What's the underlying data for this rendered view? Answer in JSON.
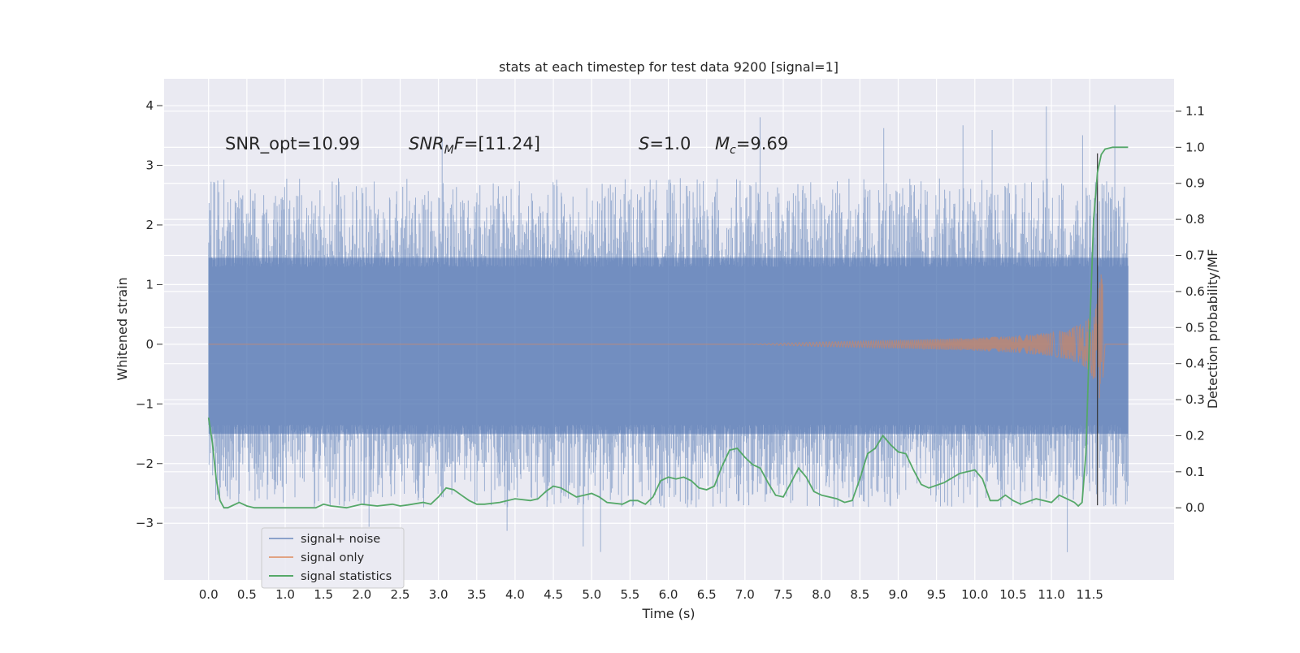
{
  "chart_data": {
    "type": "line",
    "title": "stats at each timestep for test data 9200 [signal=1]",
    "xlabel": "Time (s)",
    "ylabel": "Whitened strain",
    "ylabel_right": "Detection probability/MF",
    "xlim": [
      -0.58,
      12.6
    ],
    "ylim": [
      -3.95,
      4.45
    ],
    "ylim_right": [
      -0.2,
      1.19
    ],
    "x_ticks": [
      "0.0",
      "0.5",
      "1.0",
      "1.5",
      "2.0",
      "2.5",
      "3.0",
      "3.5",
      "4.0",
      "4.5",
      "5.0",
      "5.5",
      "6.0",
      "6.5",
      "7.0",
      "7.5",
      "8.0",
      "8.5",
      "9.0",
      "9.5",
      "10.0",
      "10.5",
      "11.0",
      "11.5"
    ],
    "y_ticks": [
      "4",
      "3",
      "2",
      "1",
      "0",
      "−1",
      "−2",
      "−3"
    ],
    "y_ticks_right": [
      "1.1",
      "1.0",
      "0.9",
      "0.8",
      "0.7",
      "0.6",
      "0.5",
      "0.4",
      "0.3",
      "0.2",
      "0.1",
      "0.0"
    ],
    "grid": true,
    "legend_position": "lower-left",
    "annotations": [
      {
        "text": "SNR_opt=10.99"
      },
      {
        "text": "SNR_MF=[11.24]"
      },
      {
        "text": "S=1.0"
      },
      {
        "text": "M_c=9.69"
      }
    ],
    "series": [
      {
        "name": "signal+ noise",
        "color": "#4c72b0",
        "kind": "noise band",
        "x_range": [
          0.0,
          12.0
        ],
        "core_range": [
          -1.5,
          1.45
        ],
        "spike_max": 4.1,
        "spike_min": -3.55
      },
      {
        "name": "signal only",
        "color": "#dd8452",
        "kind": "chirp",
        "x_range": [
          0.0,
          12.0
        ],
        "x": [
          0.0,
          7.0,
          8.0,
          9.0,
          10.0,
          10.5,
          11.0,
          11.2,
          11.4,
          11.5,
          11.6,
          11.66,
          11.7,
          12.0
        ],
        "envelope": [
          0.0,
          0.0,
          0.04,
          0.07,
          0.11,
          0.14,
          0.2,
          0.25,
          0.35,
          0.45,
          0.75,
          1.3,
          0.0,
          0.0
        ]
      },
      {
        "name": "signal statistics",
        "color": "#55a868",
        "axis": "right",
        "x": [
          0.0,
          0.05,
          0.1,
          0.15,
          0.2,
          0.25,
          0.3,
          0.4,
          0.5,
          0.6,
          0.7,
          0.8,
          1.0,
          1.2,
          1.4,
          1.5,
          1.6,
          1.8,
          2.0,
          2.2,
          2.4,
          2.5,
          2.6,
          2.8,
          2.9,
          3.0,
          3.1,
          3.2,
          3.3,
          3.4,
          3.5,
          3.6,
          3.8,
          4.0,
          4.2,
          4.3,
          4.4,
          4.5,
          4.6,
          4.8,
          4.9,
          5.0,
          5.1,
          5.2,
          5.4,
          5.5,
          5.6,
          5.7,
          5.8,
          5.9,
          6.0,
          6.1,
          6.2,
          6.3,
          6.4,
          6.5,
          6.6,
          6.7,
          6.8,
          6.9,
          7.0,
          7.1,
          7.2,
          7.3,
          7.4,
          7.5,
          7.6,
          7.7,
          7.8,
          7.9,
          8.0,
          8.2,
          8.3,
          8.4,
          8.5,
          8.6,
          8.7,
          8.8,
          8.9,
          9.0,
          9.1,
          9.2,
          9.3,
          9.4,
          9.6,
          9.8,
          9.9,
          10.0,
          10.1,
          10.2,
          10.3,
          10.4,
          10.5,
          10.6,
          10.8,
          11.0,
          11.1,
          11.2,
          11.3,
          11.35,
          11.4,
          11.45,
          11.5,
          11.55,
          11.6,
          11.65,
          11.7,
          11.8,
          11.9,
          12.0
        ],
        "y": [
          0.25,
          0.18,
          0.08,
          0.02,
          0.0,
          0.0,
          0.005,
          0.015,
          0.005,
          0.0,
          0.0,
          0.0,
          0.0,
          0.0,
          0.0,
          0.01,
          0.005,
          0.0,
          0.01,
          0.005,
          0.01,
          0.005,
          0.008,
          0.015,
          0.01,
          0.03,
          0.055,
          0.05,
          0.035,
          0.02,
          0.01,
          0.01,
          0.015,
          0.025,
          0.02,
          0.025,
          0.045,
          0.06,
          0.055,
          0.03,
          0.035,
          0.04,
          0.03,
          0.015,
          0.01,
          0.02,
          0.02,
          0.01,
          0.03,
          0.075,
          0.085,
          0.08,
          0.085,
          0.075,
          0.055,
          0.05,
          0.06,
          0.115,
          0.16,
          0.165,
          0.14,
          0.12,
          0.11,
          0.07,
          0.035,
          0.03,
          0.07,
          0.11,
          0.085,
          0.045,
          0.035,
          0.025,
          0.015,
          0.02,
          0.08,
          0.15,
          0.165,
          0.2,
          0.175,
          0.155,
          0.15,
          0.105,
          0.065,
          0.055,
          0.07,
          0.095,
          0.1,
          0.105,
          0.08,
          0.02,
          0.02,
          0.035,
          0.02,
          0.01,
          0.025,
          0.015,
          0.035,
          0.025,
          0.015,
          0.005,
          0.015,
          0.15,
          0.5,
          0.8,
          0.93,
          0.98,
          0.995,
          1.0,
          1.0,
          1.0
        ]
      }
    ]
  }
}
